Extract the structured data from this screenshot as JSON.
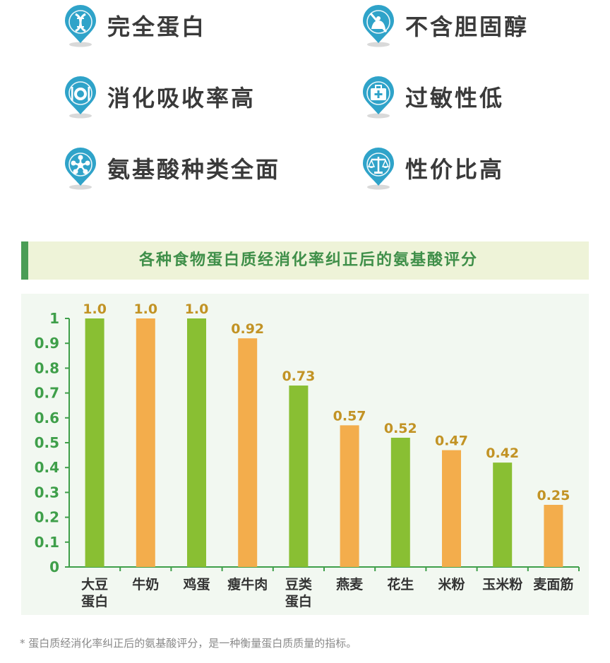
{
  "features": [
    {
      "label": "完全蛋白",
      "icon": "dna-icon",
      "pos": "left"
    },
    {
      "label": "不含胆固醇",
      "icon": "no-cholesterol-icon",
      "pos": "right"
    },
    {
      "label": "消化吸收率高",
      "icon": "plate-cutlery-icon",
      "pos": "left"
    },
    {
      "label": "过敏性低",
      "icon": "medical-kit-icon",
      "pos": "right"
    },
    {
      "label": "氨基酸种类全面",
      "icon": "molecule-icon",
      "pos": "left"
    },
    {
      "label": "性价比高",
      "icon": "balance-scale-icon",
      "pos": "right"
    }
  ],
  "colors": {
    "green": "#89bf33",
    "orange": "#f3ad4c",
    "pin": "#2fa3c9",
    "accent": "#4a9d55",
    "axis": "#3f9f4a",
    "value": "#c29325"
  },
  "chart_data": {
    "type": "bar",
    "title": "各种食物蛋白质经消化率纠正后的氨基酸评分",
    "categories": [
      [
        "大豆",
        "蛋白"
      ],
      [
        "牛奶"
      ],
      [
        "鸡蛋"
      ],
      [
        "瘦牛肉"
      ],
      [
        "豆类",
        "蛋白"
      ],
      [
        "燕麦"
      ],
      [
        "花生"
      ],
      [
        "米粉"
      ],
      [
        "玉米粉"
      ],
      [
        "麦面筋"
      ]
    ],
    "values": [
      1.0,
      1.0,
      1.0,
      0.92,
      0.73,
      0.57,
      0.52,
      0.47,
      0.42,
      0.25
    ],
    "value_labels": [
      "1.0",
      "1.0",
      "1.0",
      "0.92",
      "0.73",
      "0.57",
      "0.52",
      "0.47",
      "0.42",
      "0.25"
    ],
    "bar_colors": [
      "green",
      "orange",
      "green",
      "orange",
      "green",
      "orange",
      "green",
      "orange",
      "green",
      "orange"
    ],
    "yticks": [
      "0",
      "0.1",
      "0.2",
      "0.3",
      "0.4",
      "0.5",
      "0.6",
      "0.7",
      "0.8",
      "0.9",
      "1"
    ],
    "ylim": [
      0,
      1
    ],
    "xlabel": "",
    "ylabel": "",
    "grid": false
  },
  "footnote": "* 蛋白质经消化率纠正后的氨基酸评分，是一种衡量蛋白质质量的指标。"
}
